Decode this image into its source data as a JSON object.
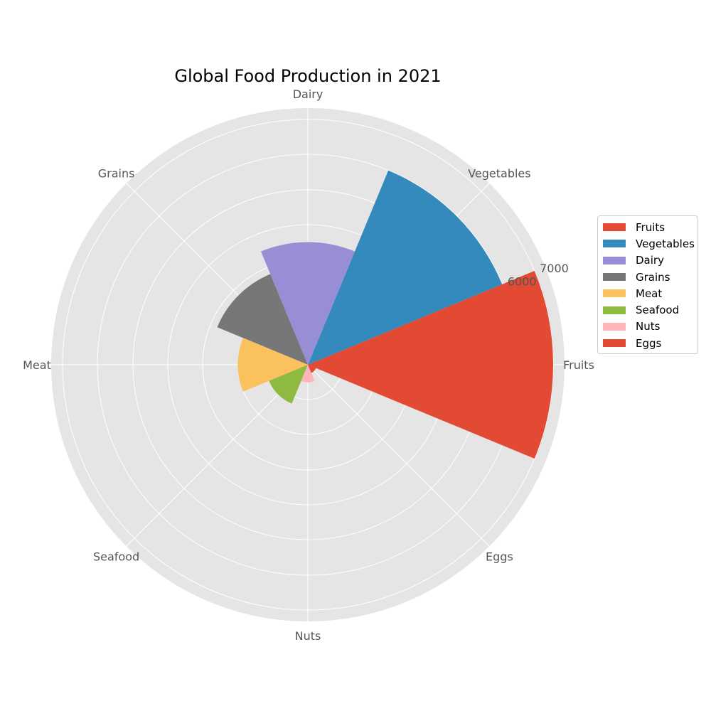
{
  "chart_data": {
    "type": "polar-bar",
    "title": "Global Food Production in 2021",
    "categories": [
      "Fruits",
      "Vegetables",
      "Dairy",
      "Grains",
      "Meat",
      "Seafood",
      "Nuts",
      "Eggs"
    ],
    "values": [
      7000,
      6000,
      3500,
      2800,
      2000,
      1200,
      500,
      250
    ],
    "colors": [
      "#E24A33",
      "#348ABD",
      "#988ED5",
      "#777777",
      "#FBC15E",
      "#8EBA42",
      "#FFB5B8",
      "#E24A33"
    ],
    "rlim": [
      0,
      7000
    ],
    "r_ticks": [
      1000,
      2000,
      3000,
      4000,
      5000,
      6000,
      7000
    ],
    "r_tick_labels": [
      "",
      "",
      "",
      "",
      "",
      "6000",
      "7000"
    ],
    "grid": true,
    "legend_position": "right",
    "legend": [
      "Fruits",
      "Vegetables",
      "Dairy",
      "Grains",
      "Meat",
      "Seafood",
      "Nuts",
      "Eggs"
    ]
  }
}
